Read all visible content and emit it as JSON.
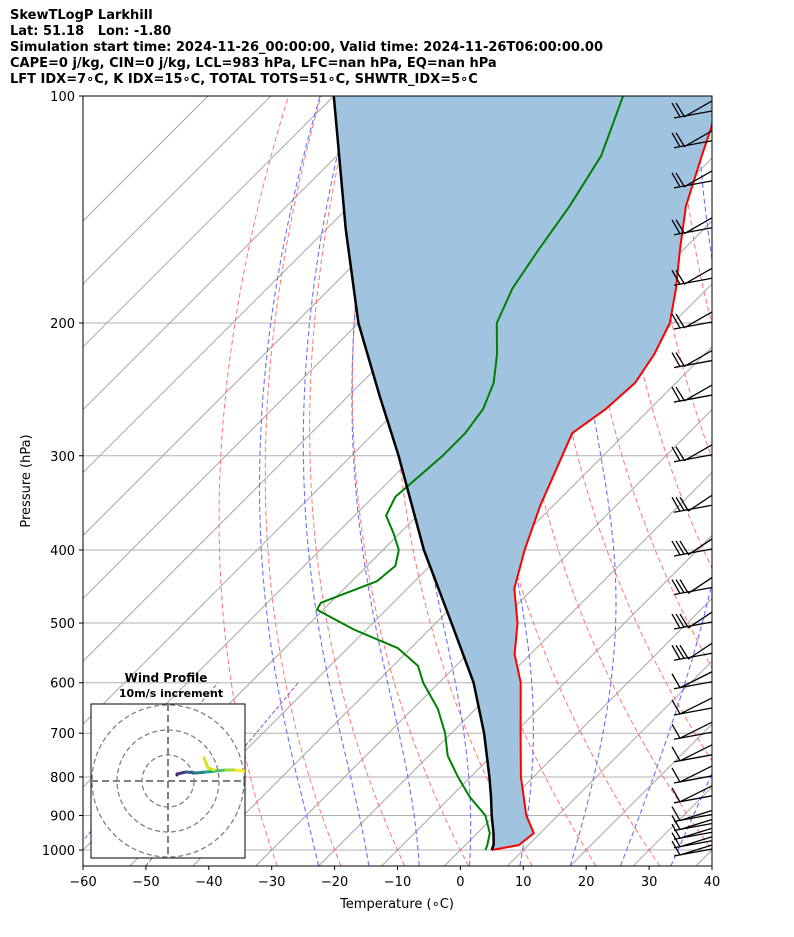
{
  "header": {
    "title": "SkewTLogP Larkhill",
    "location": "Lat: 51.18   Lon: -1.80",
    "times": "Simulation start time: 2024-11-26_00:00:00, Valid time: 2024-11-26T06:00:00.00",
    "indices1": "CAPE=0 j/kg, CIN=0 j/kg, LCL=983 hPa, LFC=nan hPa, EQ=nan hPa",
    "indices2": "LFT IDX=7∘C, K IDX=15∘C, TOTAL TOTS=51∘C, SHWTR_IDX=5∘C"
  },
  "colors": {
    "temperature": "#ff0000",
    "dewpoint": "#008000",
    "parcel": "#000000",
    "shading": "#a0c4df",
    "dry_adiabat": "#ff6666",
    "moist_adiabat": "#6666ff",
    "isotherm": "#a6a6a6",
    "mixing_ratio": "#9b4fc7"
  },
  "chart_data": {
    "type": "line",
    "title": "",
    "xlabel": "Temperature (∘C)",
    "ylabel": "Pressure (hPa)",
    "xlim": [
      -60,
      40
    ],
    "ylim": [
      1050,
      100
    ],
    "y_scale": "log",
    "grid": true,
    "x_ticks": [
      "−60",
      "−50",
      "−40",
      "−30",
      "−20",
      "−10",
      "0",
      "10",
      "20",
      "30",
      "40"
    ],
    "y_ticks": [
      "100",
      "200",
      "300",
      "400",
      "500",
      "600",
      "700",
      "800",
      "900",
      "1000"
    ],
    "series": [
      {
        "key": "temperature",
        "pressure": [
          1000,
          985,
          950,
          900,
          800,
          700,
          600,
          550,
          500,
          450,
          400,
          350,
          300,
          280,
          260,
          240,
          220,
          200,
          180,
          160,
          140,
          120,
          110,
          100
        ],
        "temperature": [
          5,
          8.5,
          9,
          5,
          -2,
          -9,
          -17,
          -22.5,
          -27,
          -33,
          -37.5,
          -42,
          -46.5,
          -48.5,
          -47,
          -46.5,
          -48,
          -50.5,
          -55,
          -60.5,
          -66.5,
          -72,
          -75,
          -79
        ]
      },
      {
        "key": "dewpoint",
        "pressure": [
          1000,
          985,
          950,
          900,
          850,
          800,
          750,
          700,
          650,
          600,
          570,
          540,
          510,
          480,
          470,
          440,
          420,
          400,
          380,
          360,
          340,
          320,
          300,
          280,
          260,
          240,
          220,
          200,
          180,
          160,
          140,
          120,
          100
        ],
        "temperature": [
          4,
          3.5,
          2,
          -1.5,
          -7,
          -12,
          -17,
          -21,
          -26,
          -32.5,
          -36,
          -42,
          -52,
          -61,
          -61.5,
          -56,
          -55.5,
          -57.5,
          -61,
          -65,
          -66.5,
          -66,
          -65.5,
          -65.5,
          -66.5,
          -69,
          -73,
          -78,
          -81,
          -83,
          -85,
          -88,
          -94
        ]
      },
      {
        "key": "parcel",
        "pressure": [
          1000,
          983,
          950,
          900,
          850,
          800,
          700,
          600,
          500,
          400,
          300,
          250,
          200,
          150,
          100
        ],
        "temperature": [
          5,
          4.4,
          2.6,
          -0.5,
          -3.6,
          -7.0,
          -14.8,
          -24.5,
          -37.5,
          -53.5,
          -72.5,
          -85,
          -100,
          -117,
          -140
        ]
      }
    ],
    "wind_barb_pressures": [
      1000,
      975,
      950,
      925,
      900,
      850,
      800,
      750,
      700,
      650,
      600,
      550,
      500,
      450,
      400,
      350,
      300,
      250,
      225,
      200,
      175,
      150,
      130,
      115,
      105
    ],
    "wind_profile": {
      "title": "Wind Profile",
      "subtitle": "10m/s increment"
    }
  }
}
